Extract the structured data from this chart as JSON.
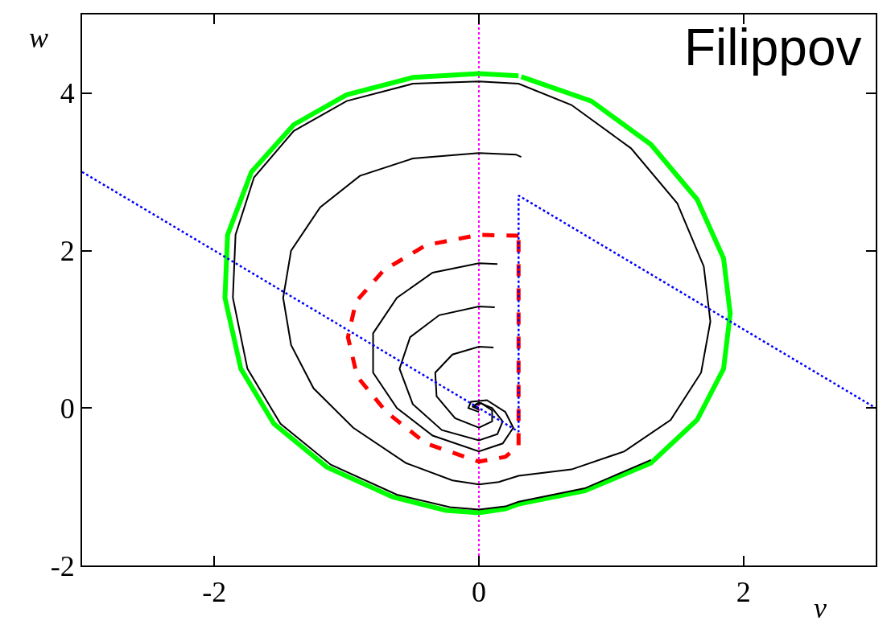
{
  "chart_data": {
    "type": "line",
    "xlabel": "v",
    "ylabel": "w",
    "xlim": [
      -3,
      3
    ],
    "ylim": [
      -2,
      5
    ],
    "xticks": [
      -2,
      0,
      2
    ],
    "yticks": [
      -2,
      0,
      2,
      4
    ],
    "grid": false,
    "marker": "none",
    "annotations": [
      "Filippov"
    ],
    "ref_lines": [
      {
        "axis": "x",
        "value": 0,
        "color": "#ff00ff",
        "line_style": "dotted"
      }
    ],
    "series": [
      {
        "color": "#00ff00",
        "line_style": "solid",
        "x": [
          0.3,
          0,
          -0.5,
          -1.0,
          -1.4,
          -1.72,
          -1.9,
          -1.92,
          -1.8,
          -1.55,
          -1.15,
          -0.65,
          -0.25,
          0,
          0.2,
          0.3,
          0.8,
          1.3,
          1.65,
          1.85,
          1.9,
          1.85,
          1.65,
          1.3,
          0.85,
          0.32
        ],
        "values": [
          4.22,
          4.25,
          4.2,
          3.98,
          3.6,
          3.0,
          2.2,
          1.4,
          0.5,
          -0.2,
          -0.75,
          -1.13,
          -1.3,
          -1.33,
          -1.28,
          -1.22,
          -1.05,
          -0.7,
          -0.15,
          0.5,
          1.2,
          1.9,
          2.65,
          3.35,
          3.9,
          4.21
        ]
      },
      {
        "color": "#000000",
        "line_style": "solid",
        "x": [
          0.32,
          0.28,
          0,
          -0.5,
          -0.9,
          -1.2,
          -1.42,
          -1.48,
          -1.42,
          -1.25,
          -0.95,
          -0.55,
          -0.2,
          0,
          0.15,
          0.3,
          0.7,
          1.1,
          1.45,
          1.68,
          1.75,
          1.7,
          1.5,
          1.15,
          0.7,
          0.3,
          0,
          -0.5,
          -1.0,
          -1.4,
          -1.7,
          -1.84,
          -1.86,
          -1.75,
          -1.5,
          -1.12,
          -0.62,
          -0.22,
          0,
          0.2,
          0.3,
          0.8,
          1.3
        ],
        "values": [
          3.19,
          3.22,
          3.24,
          3.17,
          2.95,
          2.55,
          2.0,
          1.4,
          0.8,
          0.25,
          -0.25,
          -0.7,
          -0.92,
          -0.97,
          -0.94,
          -0.86,
          -0.78,
          -0.55,
          -0.15,
          0.45,
          1.1,
          1.8,
          2.6,
          3.3,
          3.85,
          4.12,
          4.15,
          4.12,
          3.9,
          3.52,
          2.93,
          2.2,
          1.4,
          0.5,
          -0.2,
          -0.72,
          -1.1,
          -1.26,
          -1.29,
          -1.25,
          -1.19,
          -1.02,
          -0.66
        ]
      },
      {
        "color": "#000000",
        "line_style": "solid",
        "x": [
          0.14,
          0,
          -0.35,
          -0.62,
          -0.8,
          -0.8,
          -0.62,
          -0.35,
          0,
          0.18,
          0.26,
          0.2,
          0.06,
          -0.06,
          -0.08,
          0
        ],
        "values": [
          1.83,
          1.84,
          1.72,
          1.4,
          0.95,
          0.45,
          0.0,
          -0.35,
          -0.55,
          -0.45,
          -0.25,
          -0.05,
          0.1,
          0.08,
          0.0,
          -0.05
        ]
      },
      {
        "color": "#000000",
        "line_style": "solid",
        "x": [
          0.12,
          0,
          -0.3,
          -0.52,
          -0.6,
          -0.5,
          -0.28,
          0,
          0.14,
          0.18,
          0.1,
          0,
          -0.05,
          0
        ],
        "values": [
          1.28,
          1.29,
          1.18,
          0.9,
          0.5,
          0.05,
          -0.28,
          -0.41,
          -0.33,
          -0.17,
          0.0,
          0.07,
          0.02,
          -0.02
        ]
      },
      {
        "color": "#000000",
        "line_style": "solid",
        "x": [
          0.11,
          0,
          -0.2,
          -0.33,
          -0.32,
          -0.18,
          0,
          0.1,
          0.1,
          0.02,
          -0.04,
          0
        ],
        "values": [
          0.77,
          0.78,
          0.68,
          0.45,
          0.15,
          -0.13,
          -0.25,
          -0.17,
          -0.03,
          0.06,
          0.03,
          0
        ]
      },
      {
        "color": "#ff0000",
        "line_style": "dashed",
        "x": [
          0.3,
          0,
          -0.4,
          -0.72,
          -0.93,
          -0.99,
          -0.92,
          -0.7,
          -0.4,
          0,
          0.2,
          0.3,
          0.3,
          0.3
        ],
        "values": [
          2.19,
          2.2,
          2.07,
          1.75,
          1.35,
          0.9,
          0.4,
          -0.05,
          -0.45,
          -0.68,
          -0.62,
          -0.48,
          -0.35,
          2.16
        ]
      },
      {
        "color": "#0000ff",
        "line_style": "dotted",
        "x": [
          -3,
          0.3,
          0.3,
          3
        ],
        "values": [
          3,
          -0.3,
          2.7,
          0
        ]
      }
    ]
  }
}
